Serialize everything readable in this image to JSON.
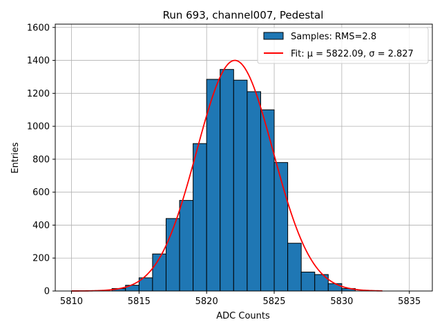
{
  "chart_data": {
    "type": "bar",
    "title": "Run 693, channel007, Pedestal",
    "xlabel": "ADC Counts",
    "ylabel": "Entries",
    "xlim": [
      5808.8,
      5836.7
    ],
    "ylim": [
      0,
      1620
    ],
    "xticks": [
      5810,
      5815,
      5820,
      5825,
      5830,
      5835
    ],
    "yticks": [
      0,
      200,
      400,
      600,
      800,
      1000,
      1200,
      1400,
      1600
    ],
    "grid": true,
    "legend_position": "top-right",
    "histogram": {
      "name": "Samples: RMS=2.8",
      "color": "#1f77b4",
      "bin_edges": [
        5813,
        5814,
        5815,
        5816,
        5817,
        5818,
        5819,
        5820,
        5821,
        5822,
        5823,
        5824,
        5825,
        5826,
        5827,
        5828,
        5829,
        5830,
        5831
      ],
      "counts": [
        15,
        35,
        80,
        225,
        440,
        550,
        895,
        1285,
        1345,
        1280,
        1210,
        1100,
        780,
        290,
        115,
        100,
        45,
        15
      ]
    },
    "fit": {
      "name": "Fit: μ = 5822.09, σ = 2.827",
      "color": "#ff0000",
      "mu": 5822.09,
      "sigma": 2.827,
      "amplitude": 1400,
      "x_range": [
        5810,
        5833
      ]
    }
  }
}
